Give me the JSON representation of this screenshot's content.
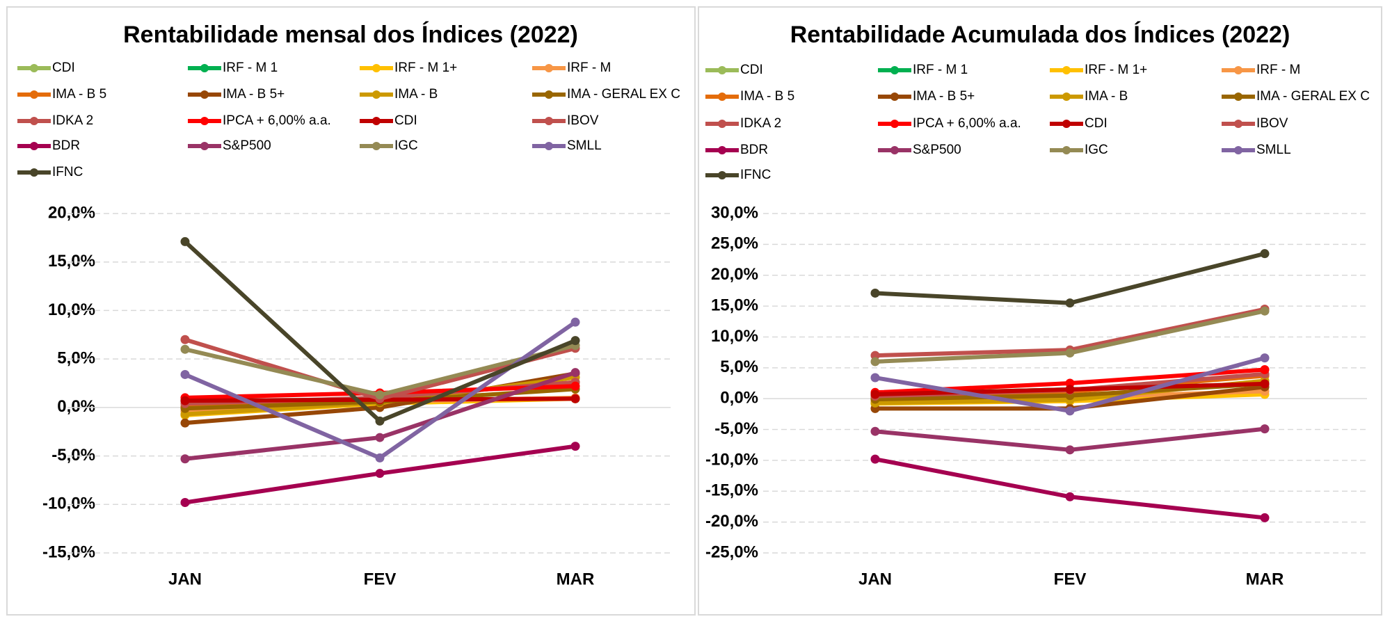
{
  "chart_data": [
    {
      "type": "line",
      "title": "Rentabilidade mensal dos Índices (2022)",
      "categories": [
        "JAN",
        "FEV",
        "MAR"
      ],
      "ylim": [
        -15,
        20
      ],
      "yticks": [
        {
          "value": -15,
          "label": "-15,0%"
        },
        {
          "value": -10,
          "label": "-10,0%"
        },
        {
          "value": -5,
          "label": "-5,0%"
        },
        {
          "value": 0,
          "label": "0,0%"
        },
        {
          "value": 5,
          "label": "5,0%"
        },
        {
          "value": 10,
          "label": "10,0%"
        },
        {
          "value": 15,
          "label": "15,0%"
        },
        {
          "value": 20,
          "label": "20,0%"
        }
      ],
      "grid": true,
      "series": [
        {
          "name": "CDI",
          "color": "#9bbb59",
          "values": [
            0.73,
            0.76,
            0.93
          ]
        },
        {
          "name": "IRF - M 1",
          "color": "#00b050",
          "values": [
            0.7,
            0.8,
            0.9
          ]
        },
        {
          "name": "IRF - M 1+",
          "color": "#ffc000",
          "values": [
            -0.8,
            0.4,
            0.9
          ]
        },
        {
          "name": "IRF - M",
          "color": "#f79646",
          "values": [
            -0.4,
            0.6,
            1.0
          ]
        },
        {
          "name": "IMA - B 5",
          "color": "#e46c0a",
          "values": [
            0.1,
            1.0,
            2.6
          ]
        },
        {
          "name": "IMA - B 5+",
          "color": "#974706",
          "values": [
            -1.6,
            0.0,
            3.5
          ]
        },
        {
          "name": "IMA - B",
          "color": "#cc9900",
          "values": [
            -0.7,
            0.5,
            3.1
          ]
        },
        {
          "name": "IMA - GERAL EX C",
          "color": "#996600",
          "values": [
            -0.1,
            0.6,
            1.9
          ]
        },
        {
          "name": "IDKA 2",
          "color": "#c0504d",
          "values": [
            0.4,
            1.0,
            2.6
          ]
        },
        {
          "name": "IPCA + 6,00% a.a.",
          "color": "#ff0000",
          "values": [
            1.0,
            1.5,
            2.2
          ]
        },
        {
          "name": "CDI",
          "color": "#c00000",
          "values": [
            0.7,
            0.8,
            0.9
          ]
        },
        {
          "name": "IBOV",
          "color": "#c0504d",
          "values": [
            7.0,
            0.9,
            6.1
          ]
        },
        {
          "name": "BDR",
          "color": "#a50050",
          "values": [
            -9.8,
            -6.8,
            -4.0
          ]
        },
        {
          "name": "S&P500",
          "color": "#993366",
          "values": [
            -5.3,
            -3.1,
            3.6
          ]
        },
        {
          "name": "IGC",
          "color": "#948a54",
          "values": [
            6.0,
            1.3,
            6.4
          ]
        },
        {
          "name": "SMLL",
          "color": "#8064a2",
          "values": [
            3.4,
            -5.2,
            8.8
          ]
        },
        {
          "name": "IFNC",
          "color": "#494529",
          "values": [
            17.1,
            -1.4,
            6.9
          ]
        }
      ]
    },
    {
      "type": "line",
      "title": "Rentabilidade Acumulada dos Índices (2022)",
      "categories": [
        "JAN",
        "FEV",
        "MAR"
      ],
      "ylim": [
        -25,
        30
      ],
      "yticks": [
        {
          "value": -25,
          "label": "-25,0%"
        },
        {
          "value": -20,
          "label": "-20,0%"
        },
        {
          "value": -15,
          "label": "-15,0%"
        },
        {
          "value": -10,
          "label": "-10,0%"
        },
        {
          "value": -5,
          "label": "-5,0%"
        },
        {
          "value": 0,
          "label": "0,0%"
        },
        {
          "value": 5,
          "label": "5,0%"
        },
        {
          "value": 10,
          "label": "10,0%"
        },
        {
          "value": 15,
          "label": "15,0%"
        },
        {
          "value": 20,
          "label": "20,0%"
        },
        {
          "value": 25,
          "label": "25,0%"
        },
        {
          "value": 30,
          "label": "30,0%"
        }
      ],
      "grid": true,
      "series": [
        {
          "name": "CDI",
          "color": "#9bbb59",
          "values": [
            0.73,
            1.5,
            2.4
          ]
        },
        {
          "name": "IRF - M 1",
          "color": "#00b050",
          "values": [
            0.7,
            1.5,
            2.4
          ]
        },
        {
          "name": "IRF - M 1+",
          "color": "#ffc000",
          "values": [
            -0.8,
            -0.4,
            0.7
          ]
        },
        {
          "name": "IRF - M",
          "color": "#f79646",
          "values": [
            -0.4,
            0.2,
            1.2
          ]
        },
        {
          "name": "IMA - B 5",
          "color": "#e46c0a",
          "values": [
            0.1,
            1.1,
            3.7
          ]
        },
        {
          "name": "IMA - B 5+",
          "color": "#974706",
          "values": [
            -1.6,
            -1.6,
            1.9
          ]
        },
        {
          "name": "IMA - B",
          "color": "#cc9900",
          "values": [
            -0.7,
            -0.2,
            2.9
          ]
        },
        {
          "name": "IMA - GERAL EX C",
          "color": "#996600",
          "values": [
            -0.1,
            0.5,
            2.4
          ]
        },
        {
          "name": "IDKA 2",
          "color": "#c0504d",
          "values": [
            0.4,
            1.4,
            4.0
          ]
        },
        {
          "name": "IPCA + 6,00% a.a.",
          "color": "#ff0000",
          "values": [
            1.0,
            2.5,
            4.7
          ]
        },
        {
          "name": "CDI",
          "color": "#c00000",
          "values": [
            0.7,
            1.5,
            2.4
          ]
        },
        {
          "name": "IBOV",
          "color": "#c0504d",
          "values": [
            7.0,
            7.9,
            14.5
          ]
        },
        {
          "name": "BDR",
          "color": "#a50050",
          "values": [
            -9.8,
            -15.9,
            -19.3
          ]
        },
        {
          "name": "S&P500",
          "color": "#993366",
          "values": [
            -5.3,
            -8.3,
            -4.9
          ]
        },
        {
          "name": "IGC",
          "color": "#948a54",
          "values": [
            6.0,
            7.4,
            14.2
          ]
        },
        {
          "name": "SMLL",
          "color": "#8064a2",
          "values": [
            3.4,
            -2.0,
            6.6
          ]
        },
        {
          "name": "IFNC",
          "color": "#494529",
          "values": [
            17.1,
            15.5,
            23.5
          ]
        }
      ]
    }
  ]
}
